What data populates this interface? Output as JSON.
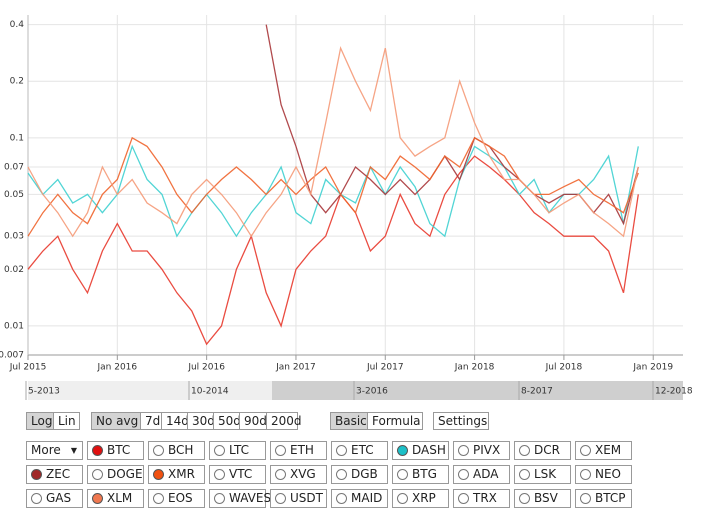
{
  "chart_data": {
    "type": "line",
    "x": [
      "2015-07",
      "2015-08",
      "2015-09",
      "2015-10",
      "2015-11",
      "2015-12",
      "2016-01",
      "2016-02",
      "2016-03",
      "2016-04",
      "2016-05",
      "2016-06",
      "2016-07",
      "2016-08",
      "2016-09",
      "2016-10",
      "2016-11",
      "2016-12",
      "2017-01",
      "2017-02",
      "2017-03",
      "2017-04",
      "2017-05",
      "2017-06",
      "2017-07",
      "2017-08",
      "2017-09",
      "2017-10",
      "2017-11",
      "2017-12",
      "2018-01",
      "2018-02",
      "2018-03",
      "2018-04",
      "2018-05",
      "2018-06",
      "2018-07",
      "2018-08",
      "2018-09",
      "2018-10",
      "2018-11",
      "2018-12"
    ],
    "series": [
      {
        "color": "#e8382c",
        "values": [
          0.02,
          0.025,
          0.03,
          0.02,
          0.015,
          0.025,
          0.035,
          0.025,
          0.025,
          0.02,
          0.015,
          0.012,
          0.008,
          0.01,
          0.02,
          0.03,
          0.015,
          0.01,
          0.02,
          0.025,
          0.03,
          0.05,
          0.04,
          0.025,
          0.03,
          0.05,
          0.035,
          0.03,
          0.05,
          0.065,
          0.08,
          0.07,
          0.06,
          0.05,
          0.04,
          0.035,
          0.03,
          0.03,
          0.03,
          0.025,
          0.015,
          0.05
        ]
      },
      {
        "color": "#3fd0d0",
        "values": [
          0.065,
          0.05,
          0.06,
          0.045,
          0.05,
          0.04,
          0.05,
          0.09,
          0.06,
          0.05,
          0.03,
          0.04,
          0.05,
          0.04,
          0.03,
          0.04,
          0.05,
          0.07,
          0.04,
          0.035,
          0.06,
          0.05,
          0.045,
          0.07,
          0.05,
          0.07,
          0.055,
          0.035,
          0.03,
          0.06,
          0.09,
          0.08,
          0.07,
          0.05,
          0.06,
          0.04,
          0.05,
          0.05,
          0.06,
          0.08,
          0.035,
          0.09
        ]
      },
      {
        "color": "#a8363a",
        "values": [
          null,
          null,
          null,
          null,
          null,
          null,
          null,
          null,
          null,
          null,
          null,
          null,
          null,
          null,
          null,
          null,
          0.4,
          0.15,
          0.09,
          0.05,
          0.04,
          0.05,
          0.07,
          0.06,
          0.05,
          0.06,
          0.05,
          0.06,
          0.08,
          0.06,
          0.1,
          0.09,
          0.07,
          0.06,
          0.05,
          0.045,
          0.05,
          0.05,
          0.04,
          0.05,
          0.035,
          0.07
        ]
      },
      {
        "color": "#f0642c",
        "values": [
          0.03,
          0.04,
          0.05,
          0.04,
          0.035,
          0.05,
          0.06,
          0.1,
          0.09,
          0.07,
          0.05,
          0.04,
          0.05,
          0.06,
          0.07,
          0.06,
          0.05,
          0.06,
          0.05,
          0.06,
          0.07,
          0.05,
          0.04,
          0.07,
          0.06,
          0.08,
          0.07,
          0.06,
          0.08,
          0.07,
          0.1,
          0.09,
          0.08,
          0.06,
          0.05,
          0.05,
          0.055,
          0.06,
          0.05,
          0.045,
          0.04,
          0.065
        ]
      },
      {
        "color": "#f59a78",
        "values": [
          0.07,
          0.05,
          0.04,
          0.03,
          0.04,
          0.07,
          0.05,
          0.06,
          0.045,
          0.04,
          0.035,
          0.05,
          0.06,
          0.05,
          0.04,
          0.03,
          0.04,
          0.05,
          0.07,
          0.05,
          0.12,
          0.3,
          0.2,
          0.14,
          0.3,
          0.1,
          0.08,
          0.09,
          0.1,
          0.2,
          0.12,
          0.08,
          0.06,
          0.06,
          0.05,
          0.04,
          0.045,
          0.05,
          0.04,
          0.035,
          0.03,
          0.07
        ]
      }
    ],
    "xlim": [
      "2015-07",
      "2019-03"
    ],
    "xticks": [
      {
        "value": "2015-07",
        "label": "Jul 2015"
      },
      {
        "value": "2016-01",
        "label": "Jan 2016"
      },
      {
        "value": "2016-07",
        "label": "Jul 2016"
      },
      {
        "value": "2017-01",
        "label": "Jan 2017"
      },
      {
        "value": "2017-07",
        "label": "Jul 2017"
      },
      {
        "value": "2018-01",
        "label": "Jan 2018"
      },
      {
        "value": "2018-07",
        "label": "Jul 2018"
      },
      {
        "value": "2019-01",
        "label": "Jan 2019"
      }
    ],
    "ylim": [
      0.007,
      0.45
    ],
    "yticks": [
      0.007,
      0.01,
      0.02,
      0.03,
      0.05,
      0.07,
      0.1,
      0.2,
      0.4
    ],
    "log_scale": true,
    "grid": true
  },
  "navigator": {
    "labels": [
      "5-2013",
      "10-2014",
      "3-2016",
      "8-2017",
      "12-2018"
    ]
  },
  "controls": {
    "scale": {
      "buttons": [
        "Log",
        "Lin"
      ],
      "active": 0
    },
    "averaging": {
      "buttons": [
        "No avg",
        "7d",
        "14d",
        "30d",
        "50d",
        "90d",
        "200d"
      ],
      "active": 0
    },
    "mode": {
      "buttons": [
        "Basic",
        "Formula"
      ],
      "active": 0
    },
    "settings": "Settings",
    "more": "More",
    "coins": [
      {
        "label": "BTC",
        "color": "#e01010"
      },
      {
        "label": "BCH"
      },
      {
        "label": "LTC"
      },
      {
        "label": "ETH"
      },
      {
        "label": "ETC"
      },
      {
        "label": "DASH",
        "color": "#1cc0c8"
      },
      {
        "label": "PIVX"
      },
      {
        "label": "DCR"
      },
      {
        "label": "XEM"
      },
      {
        "label": "ZEC",
        "color": "#a02828"
      },
      {
        "label": "DOGE"
      },
      {
        "label": "XMR",
        "color": "#f05010"
      },
      {
        "label": "VTC"
      },
      {
        "label": "XVG"
      },
      {
        "label": "DGB"
      },
      {
        "label": "BTG"
      },
      {
        "label": "ADA"
      },
      {
        "label": "LSK"
      },
      {
        "label": "NEO"
      },
      {
        "label": "GAS"
      },
      {
        "label": "XLM",
        "color": "#f07850"
      },
      {
        "label": "EOS"
      },
      {
        "label": "WAVES"
      },
      {
        "label": "USDT"
      },
      {
        "label": "MAID"
      },
      {
        "label": "XRP"
      },
      {
        "label": "TRX"
      },
      {
        "label": "BSV"
      },
      {
        "label": "BTCP"
      }
    ]
  }
}
